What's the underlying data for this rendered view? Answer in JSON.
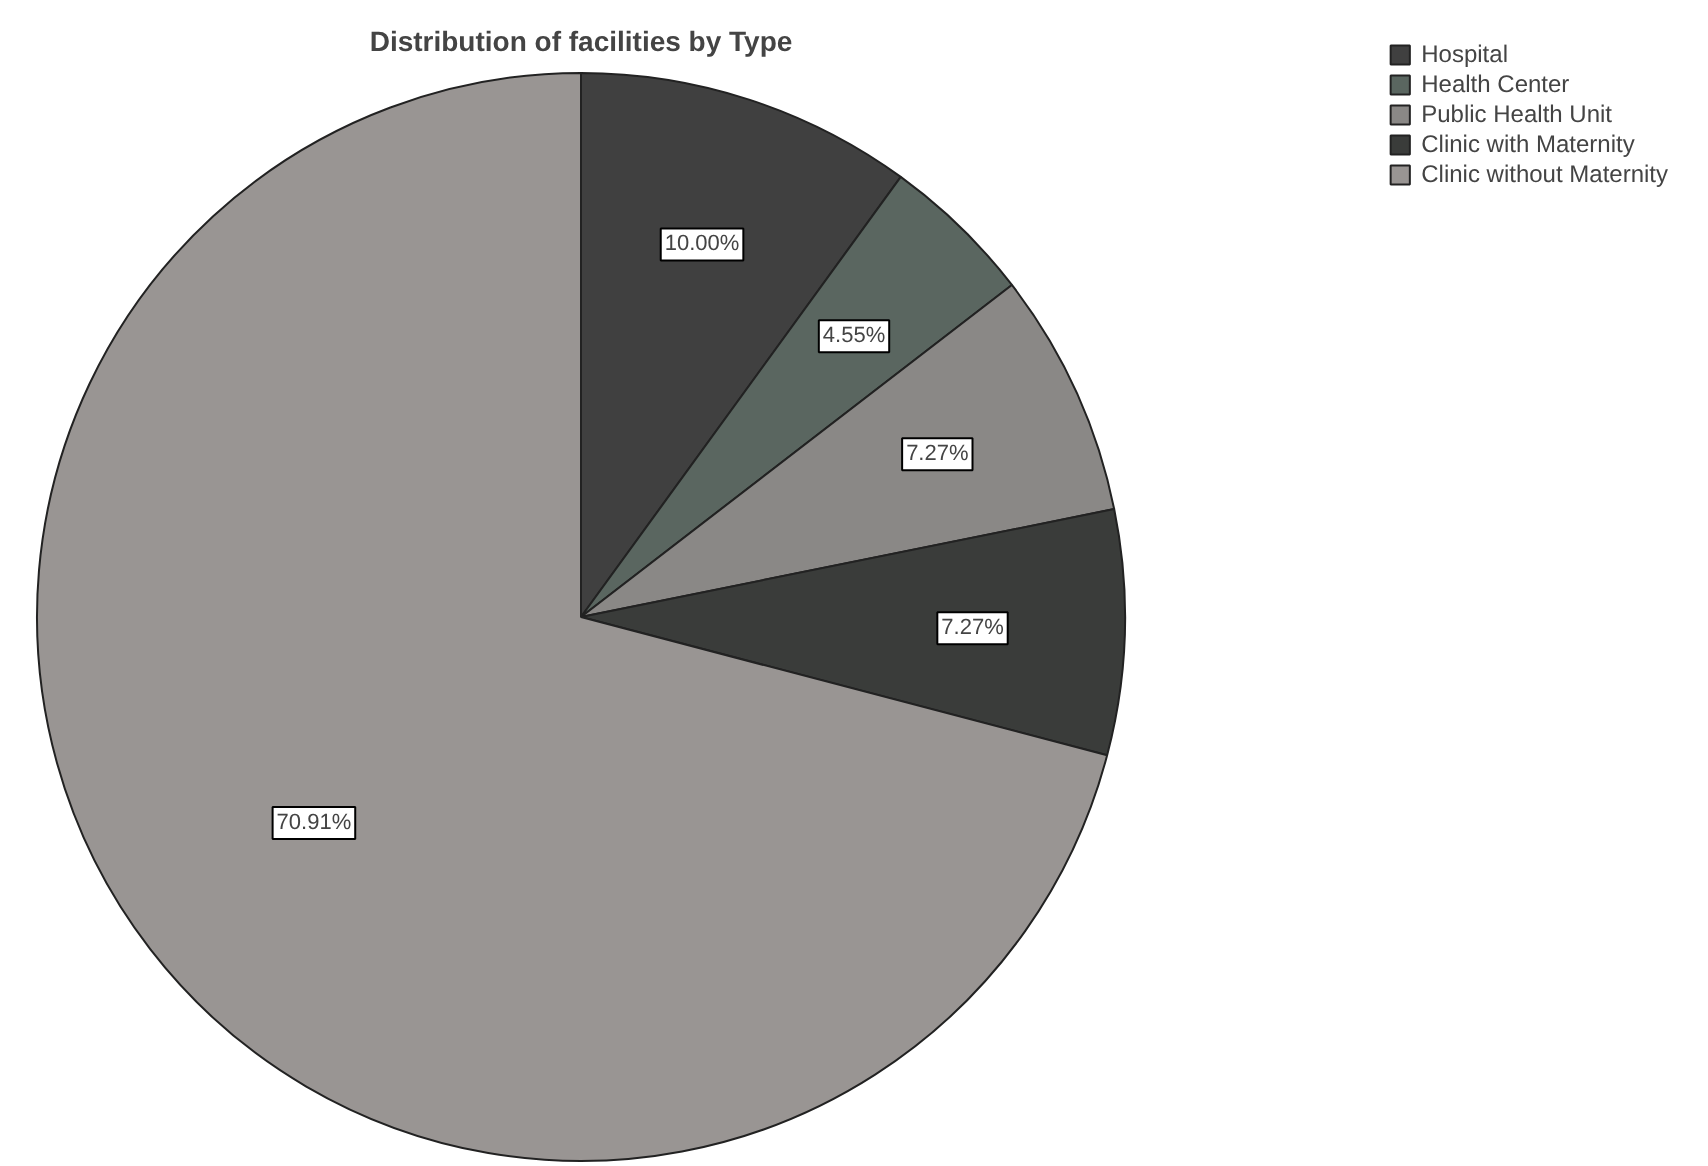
{
  "chart_data": {
    "type": "pie",
    "title": "Distribution of facilities by Type",
    "categories": [
      "Hospital",
      "Health Center",
      "Public Health Unit",
      "Clinic with Maternity",
      "Clinic without Maternity"
    ],
    "values": [
      10.0,
      4.55,
      7.27,
      7.27,
      70.91
    ],
    "value_labels": [
      "10.00%",
      "4.55%",
      "7.27%",
      "7.27%",
      "70.91%"
    ],
    "colors": [
      "#404040",
      "#5a6660",
      "#8a8886",
      "#3a3c3a",
      "#999593"
    ],
    "legend": "top right"
  }
}
